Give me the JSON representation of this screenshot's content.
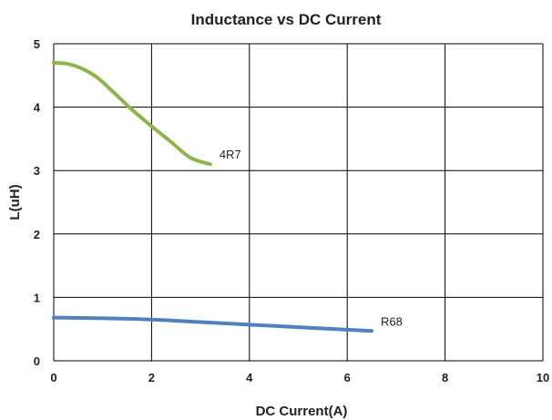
{
  "chart_data": {
    "type": "line",
    "title": "Inductance vs DC Current",
    "xlabel": "DC Current(A)",
    "ylabel": "L(uH)",
    "xlim": [
      0,
      10
    ],
    "ylim": [
      0,
      5
    ],
    "xticks": [
      0,
      2,
      4,
      6,
      8,
      10
    ],
    "yticks": [
      0,
      1,
      2,
      3,
      4,
      5
    ],
    "xtick_labels": [
      "0",
      "2",
      "4",
      "6",
      "8",
      "10"
    ],
    "ytick_labels": [
      "0",
      "1",
      "2",
      "3",
      "4",
      "5"
    ],
    "grid": true,
    "legend": "none",
    "series": [
      {
        "name": "4R7",
        "color": "#8db54a",
        "x": [
          0,
          0.3,
          0.6,
          0.9,
          1.2,
          1.6,
          2.0,
          2.4,
          2.8,
          3.2
        ],
        "y": [
          4.7,
          4.68,
          4.6,
          4.46,
          4.25,
          3.96,
          3.7,
          3.45,
          3.2,
          3.1
        ]
      },
      {
        "name": "R68",
        "color": "#4f81bd",
        "x": [
          0,
          1,
          2,
          3,
          4,
          5,
          6,
          6.5
        ],
        "y": [
          0.68,
          0.67,
          0.65,
          0.61,
          0.57,
          0.53,
          0.49,
          0.47
        ]
      }
    ]
  }
}
